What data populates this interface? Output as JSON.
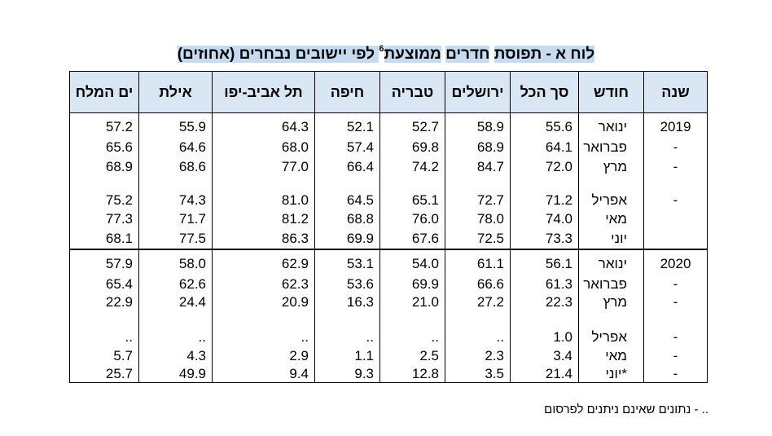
{
  "title": {
    "part1": "לוח א - ",
    "part2": "תפוסת",
    "part3": "חדרים",
    "part4": "ממוצעת",
    "sup": "6",
    "part5": " לפי יישובים נבחרים (אחוזים)"
  },
  "headers": [
    "שנה",
    "חודש",
    "סך הכל",
    "ירושלים",
    "טבריה",
    "חיפה",
    "תל אביב-יפו",
    "אילת",
    "ים המלח"
  ],
  "rows": [
    {
      "year": "2019",
      "month": "ינואר",
      "values": [
        "55.6",
        "58.9",
        "52.7",
        "52.1",
        "64.3",
        "55.9",
        "57.2"
      ]
    },
    {
      "year": "-",
      "month": "פברואר",
      "values": [
        "64.1",
        "68.9",
        "69.8",
        "57.4",
        "68.0",
        "64.6",
        "65.6"
      ]
    },
    {
      "year": "-",
      "month": "מרץ",
      "values": [
        "72.0",
        "84.7",
        "74.2",
        "66.4",
        "77.0",
        "68.6",
        "68.9"
      ]
    },
    {
      "year": "-",
      "month": "אפריל",
      "values": [
        "71.2",
        "72.7",
        "65.1",
        "64.5",
        "81.0",
        "74.3",
        "75.2"
      ]
    },
    {
      "year": "",
      "month": "מאי",
      "values": [
        "74.0",
        "78.0",
        "76.0",
        "68.8",
        "81.2",
        "71.7",
        "77.3"
      ]
    },
    {
      "year": "",
      "month": "יוני",
      "values": [
        "73.3",
        "72.5",
        "67.6",
        "69.9",
        "86.3",
        "77.5",
        "68.1"
      ]
    },
    {
      "year": "2020",
      "month": "ינואר",
      "values": [
        "56.1",
        "61.1",
        "54.0",
        "53.1",
        "62.9",
        "58.0",
        "57.9"
      ]
    },
    {
      "year": "-",
      "month": "פברואר",
      "values": [
        "61.3",
        "66.6",
        "69.9",
        "53.6",
        "62.3",
        "62.6",
        "65.4"
      ]
    },
    {
      "year": "-",
      "month": "מרץ",
      "values": [
        "22.3",
        "27.2",
        "21.0",
        "16.3",
        "20.9",
        "24.4",
        "22.9"
      ]
    },
    {
      "year": "-",
      "month": "אפריל",
      "values": [
        "1.0",
        "..",
        "..",
        "..",
        "..",
        "..",
        ".."
      ]
    },
    {
      "year": "-",
      "month": "מאי",
      "values": [
        "3.4",
        "2.3",
        "2.5",
        "1.1",
        "2.9",
        "4.3",
        "5.7"
      ]
    },
    {
      "year": "-",
      "month": "*יוני",
      "values": [
        "21.4",
        "3.5",
        "12.8",
        "9.3",
        "9.4",
        "49.9",
        "25.7"
      ]
    }
  ],
  "footnote": ".. - נתונים שאינם ניתנים לפרסום"
}
